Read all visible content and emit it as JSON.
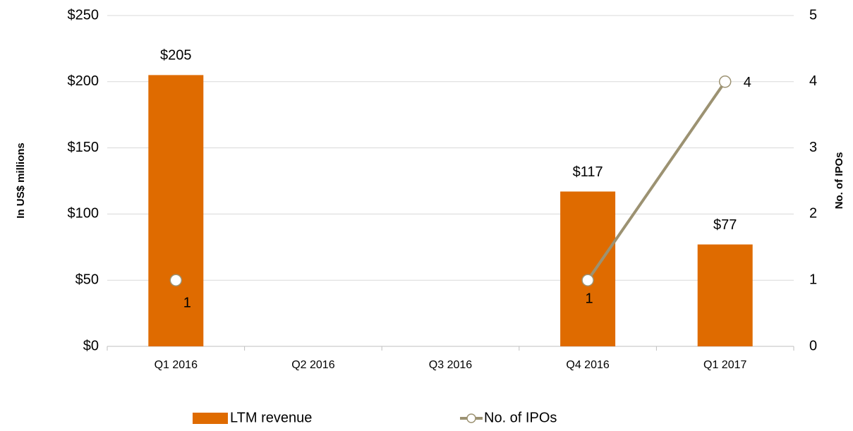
{
  "chart_data": {
    "type": "bar",
    "categories": [
      "Q1 2016",
      "Q2 2016",
      "Q3 2016",
      "Q4 2016",
      "Q1 2017"
    ],
    "ylabel": "In US$ millions",
    "y2label": "No. of IPOs",
    "ylim": [
      0,
      250
    ],
    "yticks": [
      {
        "value": 0,
        "label": "$0"
      },
      {
        "value": 50,
        "label": "$50"
      },
      {
        "value": 100,
        "label": "$100"
      },
      {
        "value": 150,
        "label": "$150"
      },
      {
        "value": 200,
        "label": "$200"
      },
      {
        "value": 250,
        "label": "$250"
      }
    ],
    "y2lim": [
      0,
      5
    ],
    "y2ticks": [
      0,
      1,
      2,
      3,
      4,
      5
    ],
    "grid": true,
    "legend": "bottom",
    "series": [
      {
        "name": "LTM revenue",
        "type": "bar",
        "color": "#df6b00",
        "values": [
          205,
          null,
          null,
          117,
          77
        ],
        "value_labels": [
          "$205",
          null,
          null,
          "$117",
          "$77"
        ]
      },
      {
        "name": "No. of IPOs",
        "type": "line",
        "axis": "y2",
        "color": "#9c9272",
        "values": [
          1,
          null,
          null,
          1,
          4
        ]
      }
    ]
  }
}
